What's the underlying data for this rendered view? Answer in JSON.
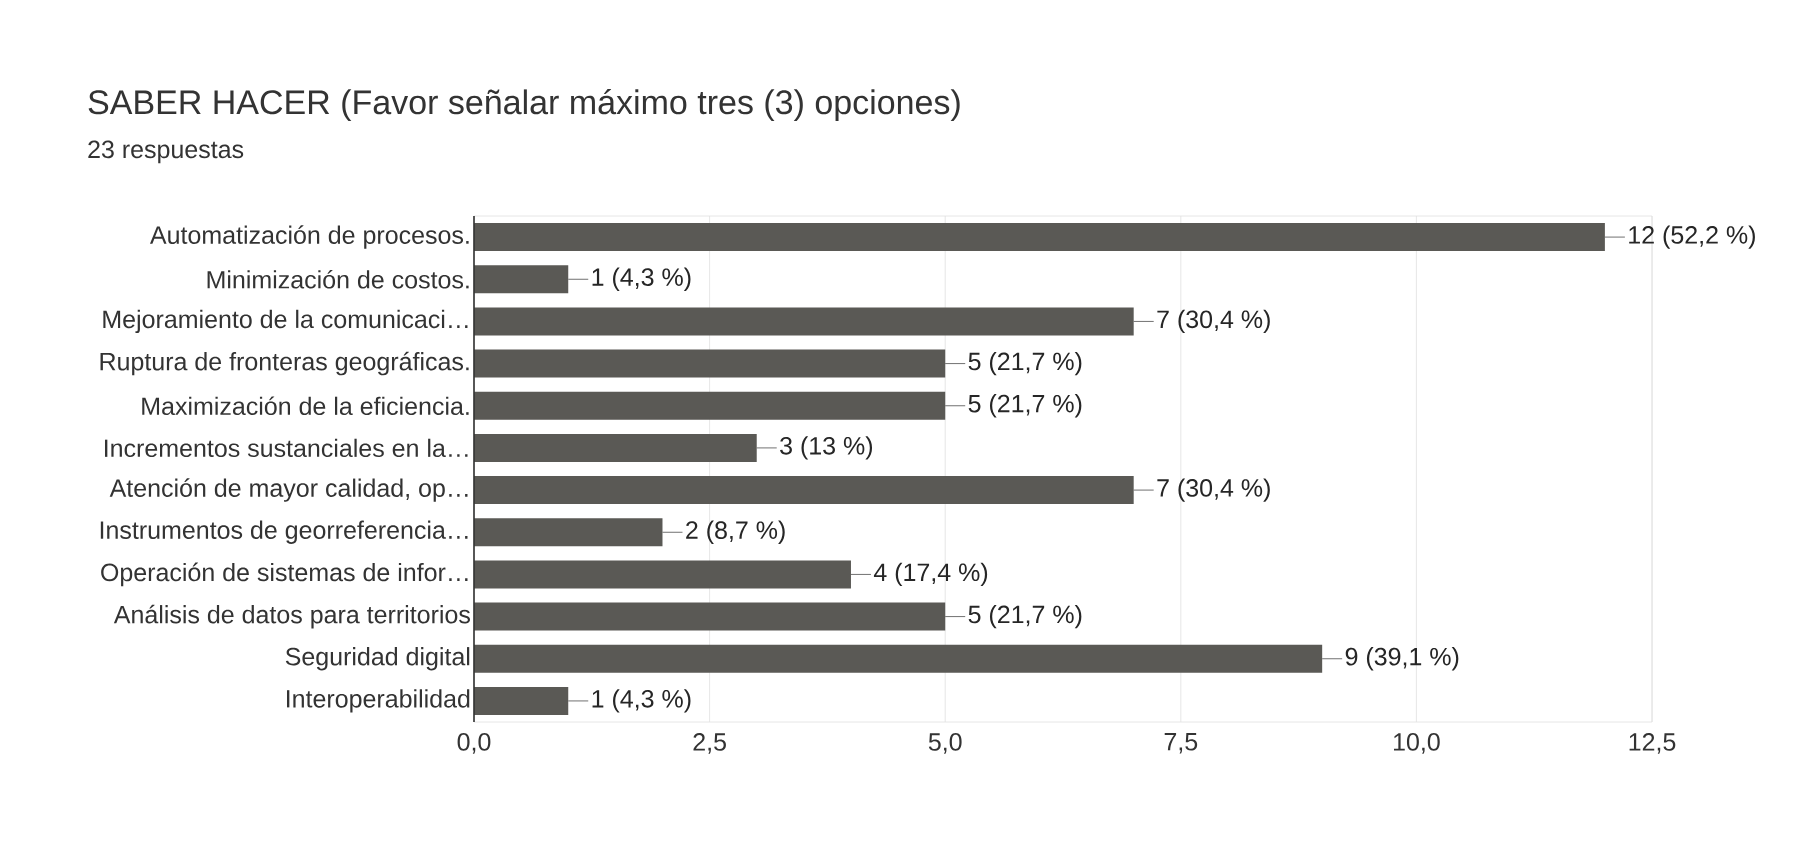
{
  "chart_data": {
    "type": "bar",
    "orientation": "horizontal",
    "title": "SABER HACER (Favor señalar máximo tres (3) opciones)",
    "subtitle": "23 respuestas",
    "categories": [
      "Automatización de procesos.",
      "Minimización de costos.",
      "Mejoramiento de la comunicaci…",
      "Ruptura de fronteras geográficas.",
      "Maximización de la eficiencia.",
      "Incrementos sustanciales en la…",
      "Atención de mayor calidad, op…",
      "Instrumentos de georreferencia…",
      "Operación de sistemas de infor…",
      "Análisis de datos para territorios",
      "Seguridad digital",
      "Interoperabilidad"
    ],
    "values": [
      12,
      1,
      7,
      5,
      5,
      3,
      7,
      2,
      4,
      5,
      9,
      1
    ],
    "value_labels": [
      "12 (52,2 %)",
      "1 (4,3 %)",
      "7 (30,4 %)",
      "5 (21,7 %)",
      "5 (21,7 %)",
      "3 (13 %)",
      "7 (30,4 %)",
      "2 (8,7 %)",
      "4 (17,4 %)",
      "5 (21,7 %)",
      "9 (39,1 %)",
      "1 (4,3 %)"
    ],
    "color": "#5a5955",
    "xlim": [
      0,
      12.5
    ],
    "xticks": [
      {
        "value": 0,
        "label": "0,0"
      },
      {
        "value": 2.5,
        "label": "2,5"
      },
      {
        "value": 5,
        "label": "5,0"
      },
      {
        "value": 7.5,
        "label": "7,5"
      },
      {
        "value": 10,
        "label": "10,0"
      },
      {
        "value": 12.5,
        "label": "12,5"
      }
    ],
    "grid": "x"
  }
}
